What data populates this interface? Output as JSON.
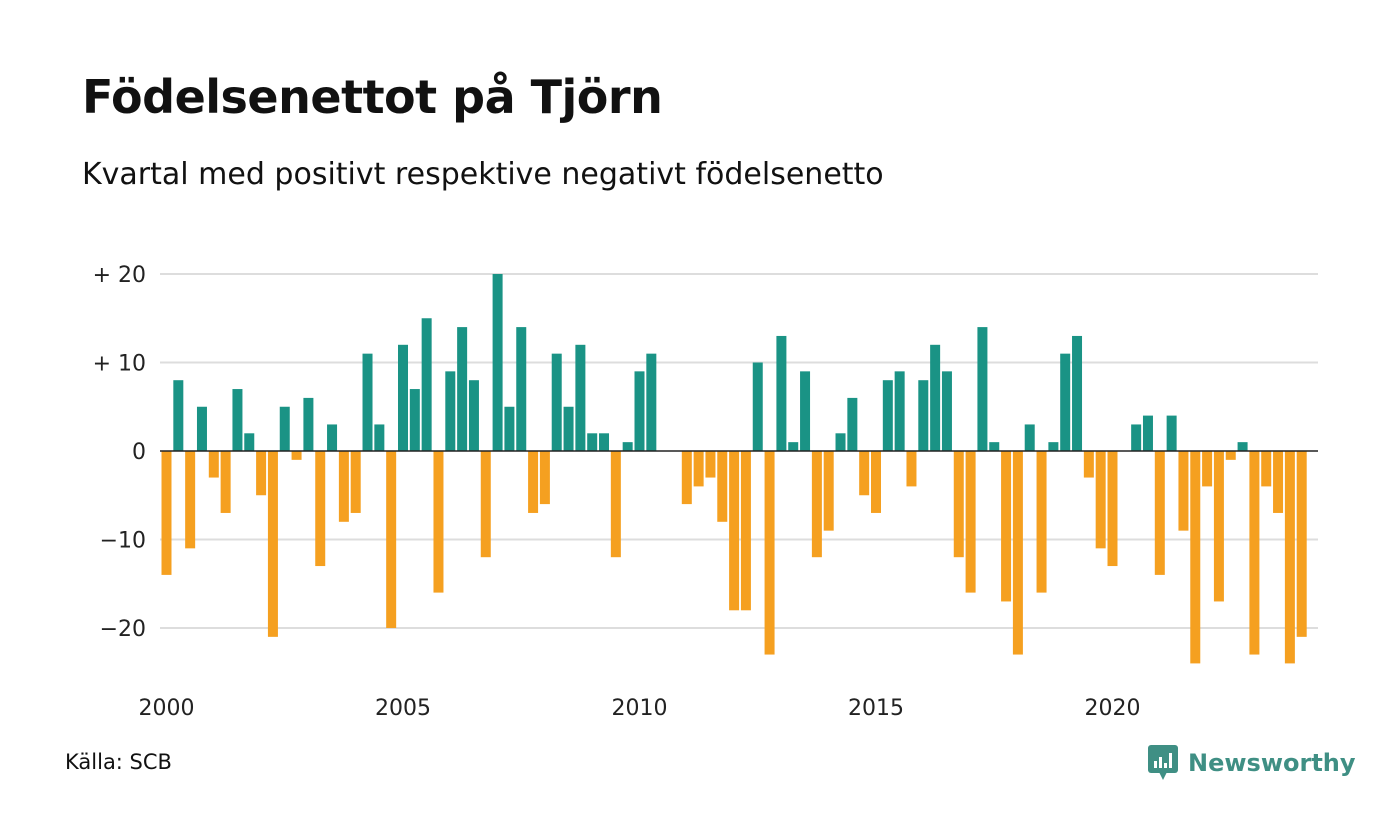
{
  "title": "Födelsenettot på Tjörn",
  "subtitle": "Kvartal med positivt respektive negativt födelsenetto",
  "source": "Källa: SCB",
  "logo": {
    "text": "Newsworthy",
    "icon": "newsworthy-logo-icon"
  },
  "colors": {
    "positive": "#1a9385",
    "negative": "#f5a020",
    "grid": "#dddddd",
    "zero_line": "#222222"
  },
  "chart_data": {
    "type": "bar",
    "title": "Födelsenettot på Tjörn",
    "subtitle": "Kvartal med positivt respektive negativt födelsenetto",
    "xlabel": "",
    "ylabel": "",
    "grid": true,
    "ylim": [
      -25,
      20
    ],
    "x_start": 2000,
    "x_step": 0.25,
    "yticks": [
      20,
      10,
      0,
      -10,
      -20
    ],
    "ytick_labels": [
      "+ 20",
      "+ 10",
      "0",
      "−10",
      "−20"
    ],
    "xticks": [
      2000,
      2005,
      2010,
      2015,
      2020
    ],
    "xtick_labels": [
      "2000",
      "2005",
      "2010",
      "2015",
      "2020"
    ],
    "values": [
      -14,
      8,
      -11,
      5,
      -3,
      -7,
      7,
      2,
      -5,
      -21,
      5,
      -1,
      6,
      -13,
      3,
      -8,
      -7,
      11,
      3,
      -20,
      12,
      7,
      15,
      -16,
      9,
      14,
      8,
      -12,
      20,
      5,
      14,
      -7,
      -6,
      11,
      5,
      12,
      2,
      2,
      -12,
      1,
      9,
      11,
      0,
      0,
      -6,
      -4,
      -3,
      -8,
      -18,
      -18,
      10,
      -23,
      13,
      1,
      9,
      -12,
      -9,
      2,
      6,
      -5,
      -7,
      8,
      9,
      -4,
      8,
      12,
      9,
      -12,
      -16,
      14,
      1,
      -17,
      -23,
      3,
      -16,
      1,
      11,
      13,
      -3,
      -11,
      -13,
      0,
      3,
      4,
      -14,
      4,
      -9,
      -24,
      -4,
      -17,
      -1,
      1,
      -23,
      -4,
      -7,
      -24,
      -21
    ]
  }
}
